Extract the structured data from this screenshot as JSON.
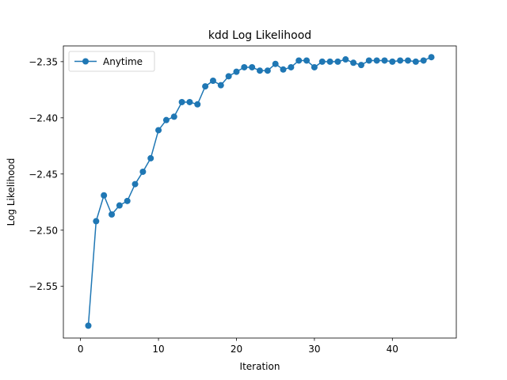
{
  "chart_data": {
    "type": "line",
    "title": "kdd Log Likelihood",
    "xlabel": "Iteration",
    "ylabel": "Log Likelihood",
    "xlim": [
      -2.2,
      48.2
    ],
    "ylim": [
      -2.596,
      -2.336
    ],
    "xticks": [
      0,
      10,
      20,
      30,
      40
    ],
    "xtick_labels": [
      "0",
      "10",
      "20",
      "30",
      "40"
    ],
    "yticks": [
      -2.55,
      -2.5,
      -2.45,
      -2.4,
      -2.35
    ],
    "ytick_labels": [
      "−2.55",
      "−2.50",
      "−2.45",
      "−2.40",
      "−2.35"
    ],
    "grid": false,
    "legend_position": "upper-left",
    "x": [
      1,
      2,
      3,
      4,
      5,
      6,
      7,
      8,
      9,
      10,
      11,
      12,
      13,
      14,
      15,
      16,
      17,
      18,
      19,
      20,
      21,
      22,
      23,
      24,
      25,
      26,
      27,
      28,
      29,
      30,
      31,
      32,
      33,
      34,
      35,
      36,
      37,
      38,
      39,
      40,
      41,
      42,
      43,
      44,
      45
    ],
    "series": [
      {
        "name": "Anytime",
        "color": "#1f77b4",
        "marker": "circle",
        "values": [
          -2.585,
          -2.492,
          -2.469,
          -2.486,
          -2.478,
          -2.474,
          -2.459,
          -2.448,
          -2.436,
          -2.411,
          -2.402,
          -2.399,
          -2.386,
          -2.386,
          -2.388,
          -2.372,
          -2.367,
          -2.371,
          -2.363,
          -2.359,
          -2.355,
          -2.355,
          -2.358,
          -2.358,
          -2.352,
          -2.357,
          -2.355,
          -2.349,
          -2.349,
          -2.355,
          -2.35,
          -2.35,
          -2.35,
          -2.348,
          -2.351,
          -2.353,
          -2.349,
          -2.349,
          -2.349,
          -2.35,
          -2.349,
          -2.349,
          -2.35,
          -2.349,
          -2.346
        ]
      }
    ]
  }
}
